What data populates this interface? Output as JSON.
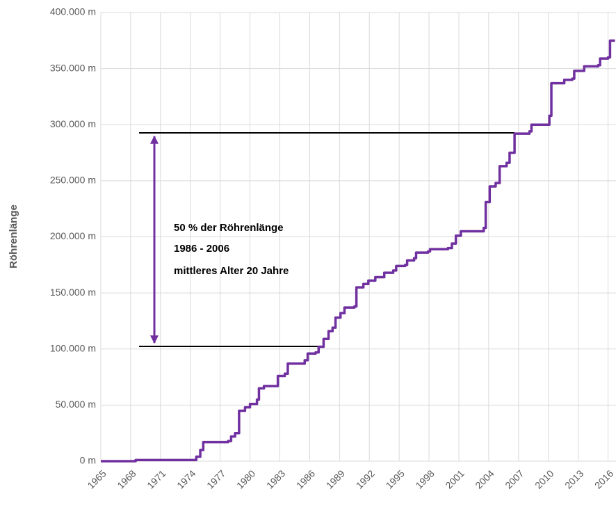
{
  "chart_data": {
    "type": "line",
    "y_label": "Röhrenlänge",
    "annotation": [
      "50 % der Röhrenlänge",
      "1986 - 2006",
      "mittleres Alter 20 Jahre"
    ],
    "color": "#7030a0",
    "grid": true,
    "xlim": [
      1965,
      2016.8
    ],
    "xticks": [
      1965,
      1968,
      1971,
      1974,
      1977,
      1980,
      1983,
      1986,
      1989,
      1992,
      1995,
      1998,
      2001,
      2004,
      2007,
      2010,
      2013,
      2016
    ],
    "ylim": [
      0,
      400000
    ],
    "yticks": [
      {
        "value": 0,
        "label": "0 m"
      },
      {
        "value": 50000,
        "label": "50.000 m"
      },
      {
        "value": 100000,
        "label": "100.000 m"
      },
      {
        "value": 150000,
        "label": "150.000 m"
      },
      {
        "value": 200000,
        "label": "200.000 m"
      },
      {
        "value": 250000,
        "label": "250.000 m"
      },
      {
        "value": 300000,
        "label": "300.000 m"
      },
      {
        "value": 350000,
        "label": "350.000 m"
      },
      {
        "value": 400000,
        "label": "400.000 m"
      }
    ],
    "x": [
      1965,
      1968.5,
      1973.9,
      1974.6,
      1975,
      1975.3,
      1977.8,
      1978.1,
      1978.5,
      1978.9,
      1979.5,
      1980,
      1980.7,
      1980.9,
      1981.4,
      1982.5,
      1982.8,
      1983.5,
      1983.8,
      1985.5,
      1985.8,
      1986.6,
      1986.9,
      1987.4,
      1987.9,
      1988.3,
      1988.6,
      1989.1,
      1989.5,
      1990.5,
      1990.7,
      1991.4,
      1991.9,
      1992.6,
      1993.5,
      1994.4,
      1994.7,
      1995.6,
      1995.8,
      1996.5,
      1996.7,
      1997.9,
      1998.1,
      1999.9,
      2000.3,
      2000.7,
      2001.2,
      2003.5,
      2003.7,
      2004.1,
      2004.7,
      2005.1,
      2005.8,
      2006.1,
      2006.6,
      2008.1,
      2008.3,
      2010.1,
      2010.3,
      2011.6,
      2012.4,
      2012.6,
      2013.6,
      2015,
      2015.2,
      2016,
      2016.2,
      2016.7
    ],
    "values": [
      0,
      1000,
      1000,
      4000,
      10000,
      17000,
      18000,
      22000,
      25000,
      45000,
      48000,
      51000,
      55000,
      65000,
      67000,
      67000,
      76000,
      78000,
      87000,
      90000,
      96000,
      97000,
      102000,
      109000,
      116000,
      119000,
      128000,
      132000,
      137000,
      138000,
      155000,
      158000,
      161000,
      164000,
      168000,
      170000,
      174000,
      175000,
      179000,
      181000,
      186000,
      187000,
      189000,
      190000,
      194000,
      201000,
      205000,
      208000,
      231000,
      245000,
      248000,
      263000,
      266000,
      275000,
      292000,
      294000,
      300000,
      308000,
      337000,
      340000,
      341000,
      348000,
      352000,
      353000,
      359000,
      360000,
      375000,
      375000
    ]
  }
}
